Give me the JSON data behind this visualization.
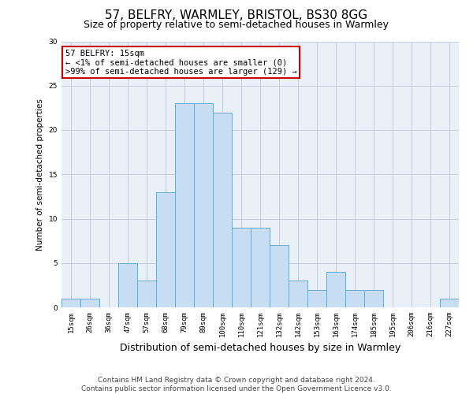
{
  "title": "57, BELFRY, WARMLEY, BRISTOL, BS30 8GG",
  "subtitle": "Size of property relative to semi-detached houses in Warmley",
  "xlabel": "Distribution of semi-detached houses by size in Warmley",
  "ylabel": "Number of semi-detached properties",
  "categories": [
    "15sqm",
    "26sqm",
    "36sqm",
    "47sqm",
    "57sqm",
    "68sqm",
    "79sqm",
    "89sqm",
    "100sqm",
    "110sqm",
    "121sqm",
    "132sqm",
    "142sqm",
    "153sqm",
    "163sqm",
    "174sqm",
    "185sqm",
    "195sqm",
    "206sqm",
    "216sqm",
    "227sqm"
  ],
  "values": [
    1,
    1,
    0,
    5,
    3,
    13,
    23,
    23,
    22,
    9,
    9,
    7,
    3,
    2,
    4,
    2,
    2,
    0,
    0,
    0,
    1
  ],
  "bar_color": "#c9ddf2",
  "bar_edge_color": "#6aaad4",
  "annotation_title": "57 BELFRY: 15sqm",
  "annotation_line1": "← <1% of semi-detached houses are smaller (0)",
  "annotation_line2": ">99% of semi-detached houses are larger (129) →",
  "annotation_box_color": "#ffffff",
  "annotation_box_edge": "#cc0000",
  "ylim": [
    0,
    30
  ],
  "yticks": [
    0,
    5,
    10,
    15,
    20,
    25,
    30
  ],
  "footer_line1": "Contains HM Land Registry data © Crown copyright and database right 2024.",
  "footer_line2": "Contains public sector information licensed under the Open Government Licence v3.0.",
  "bg_color": "#ffffff",
  "plot_bg_color": "#eaf0f8",
  "grid_color": "#c0c8d8",
  "title_fontsize": 11,
  "subtitle_fontsize": 9,
  "xlabel_fontsize": 9,
  "ylabel_fontsize": 7.5,
  "tick_fontsize": 6.5,
  "annotation_fontsize": 7.5,
  "footer_fontsize": 6.5
}
